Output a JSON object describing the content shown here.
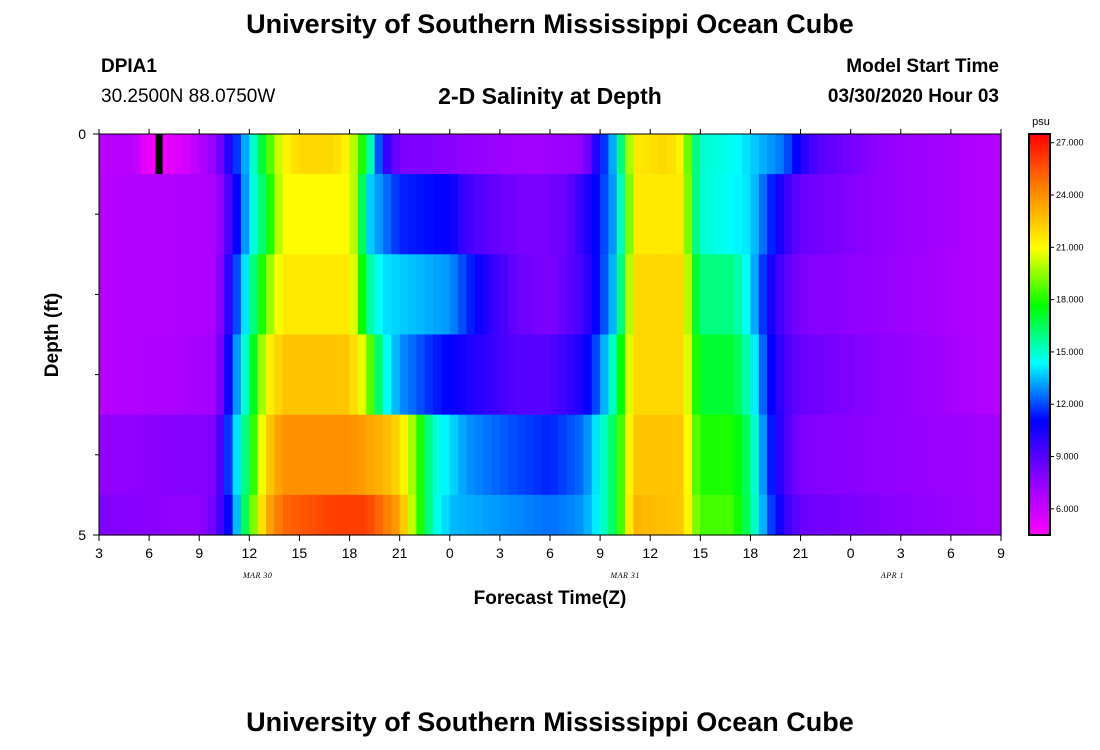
{
  "header": {
    "title": "University of Southern Mississippi Ocean Cube",
    "station_id": "DPIA1",
    "station_location": "30.2500N 88.0750W",
    "chart_title": "2-D Salinity at Depth",
    "model_label": "Model Start Time",
    "model_time": "03/30/2020 Hour 03"
  },
  "footer": {
    "title": "University of Southern Mississippi Ocean Cube"
  },
  "chart_data": {
    "type": "heatmap",
    "title": "2-D Salinity at Depth",
    "xlabel": "Forecast Time(Z)",
    "ylabel": "Depth (ft)",
    "colorbar_unit": "psu",
    "x_tick_labels": [
      "3",
      "6",
      "9",
      "12",
      "15",
      "18",
      "21",
      "0",
      "3",
      "6",
      "9",
      "12",
      "15",
      "18",
      "21",
      "0",
      "3",
      "6",
      "9"
    ],
    "date_labels": [
      {
        "text": "MAR 30",
        "x_hours": 12.5
      },
      {
        "text": "MAR 31",
        "x_hours": 34.5
      },
      {
        "text": "APR 1",
        "x_hours": 50.5
      }
    ],
    "x_range_hours": [
      3,
      57
    ],
    "y_range_ft": [
      0,
      5
    ],
    "y_tick_labels": [
      "0",
      "5"
    ],
    "y_minor_ticks": [
      1,
      2,
      3,
      4
    ],
    "depth_levels_ft": [
      0.25,
      1,
      2,
      3,
      4,
      4.75
    ],
    "depth_band_edges_ft": [
      0,
      0.5,
      1.5,
      2.5,
      3.5,
      4.5,
      5
    ],
    "color_scale": {
      "min": 4.5,
      "max": 27.5,
      "stops": [
        "#ff00ff",
        "#8800ff",
        "#0000ff",
        "#00ffff",
        "#00ff00",
        "#ffff00",
        "#ff8800",
        "#ff0000"
      ],
      "tick_labels": [
        "6.000",
        "9.000",
        "12.000",
        "15.000",
        "18.000",
        "21.000",
        "24.000",
        "27.000"
      ],
      "tick_values": [
        6,
        9,
        12,
        15,
        18,
        21,
        24,
        27
      ]
    },
    "series": [
      {
        "name": "0.25 ft",
        "keyframes": [
          [
            3,
            6.5
          ],
          [
            5,
            6.5
          ],
          [
            6,
            4.8
          ],
          [
            8,
            5.5
          ],
          [
            9,
            6.5
          ],
          [
            10,
            7.5
          ],
          [
            11,
            11
          ],
          [
            12,
            14
          ],
          [
            13,
            18
          ],
          [
            14,
            21
          ],
          [
            15,
            22
          ],
          [
            17,
            22
          ],
          [
            18,
            21
          ],
          [
            19,
            17
          ],
          [
            20,
            10.5
          ],
          [
            21,
            8
          ],
          [
            23,
            8
          ],
          [
            25,
            7.5
          ],
          [
            29,
            7
          ],
          [
            32,
            7.5
          ],
          [
            33,
            11
          ],
          [
            34,
            14
          ],
          [
            34.5,
            18
          ],
          [
            35,
            21.5
          ],
          [
            37,
            22
          ],
          [
            38,
            21
          ],
          [
            38.5,
            17
          ],
          [
            39,
            15
          ],
          [
            41,
            14.5
          ],
          [
            44,
            12.5
          ],
          [
            45,
            10.5
          ],
          [
            46,
            9
          ],
          [
            50,
            7.5
          ],
          [
            57,
            6.5
          ]
        ]
      },
      {
        "name": "1 ft",
        "keyframes": [
          [
            3,
            6.5
          ],
          [
            10,
            6.8
          ],
          [
            11,
            10
          ],
          [
            12,
            14
          ],
          [
            13,
            17
          ],
          [
            14,
            21
          ],
          [
            18,
            21
          ],
          [
            18.5,
            19
          ],
          [
            19,
            14
          ],
          [
            21,
            11.5
          ],
          [
            24,
            11
          ],
          [
            25,
            9.5
          ],
          [
            27,
            8.5
          ],
          [
            29,
            8
          ],
          [
            31,
            8.5
          ],
          [
            32,
            10
          ],
          [
            33,
            11.5
          ],
          [
            34,
            13.5
          ],
          [
            34.5,
            17
          ],
          [
            35,
            21.5
          ],
          [
            38,
            21.5
          ],
          [
            38.5,
            17
          ],
          [
            39,
            15
          ],
          [
            42,
            14
          ],
          [
            43,
            12
          ],
          [
            44,
            10
          ],
          [
            45,
            8.5
          ],
          [
            50,
            7.5
          ],
          [
            57,
            6.5
          ]
        ]
      },
      {
        "name": "2 ft",
        "keyframes": [
          [
            3,
            6.5
          ],
          [
            10,
            6.8
          ],
          [
            11,
            11
          ],
          [
            12,
            15
          ],
          [
            13,
            19
          ],
          [
            14,
            21.5
          ],
          [
            18,
            21.5
          ],
          [
            18.5,
            19.5
          ],
          [
            19,
            16
          ],
          [
            20,
            14
          ],
          [
            24,
            13
          ],
          [
            26,
            10.5
          ],
          [
            28,
            8.5
          ],
          [
            30,
            8
          ],
          [
            32,
            9.5
          ],
          [
            33,
            11.5
          ],
          [
            34,
            14
          ],
          [
            34.5,
            18
          ],
          [
            35,
            22
          ],
          [
            38,
            22
          ],
          [
            38.5,
            18
          ],
          [
            39,
            16
          ],
          [
            41,
            16
          ],
          [
            42,
            14
          ],
          [
            43,
            11
          ],
          [
            44,
            9
          ],
          [
            45,
            8
          ],
          [
            57,
            6.5
          ]
        ]
      },
      {
        "name": "3 ft",
        "keyframes": [
          [
            3,
            6.5
          ],
          [
            10,
            7
          ],
          [
            11,
            12
          ],
          [
            12,
            16
          ],
          [
            13,
            21
          ],
          [
            14,
            22.5
          ],
          [
            18,
            22.5
          ],
          [
            19,
            20
          ],
          [
            20,
            15
          ],
          [
            21,
            13
          ],
          [
            23,
            11.5
          ],
          [
            25,
            10.5
          ],
          [
            28,
            9
          ],
          [
            30,
            9
          ],
          [
            32,
            10.5
          ],
          [
            33,
            12.5
          ],
          [
            34,
            16
          ],
          [
            34.5,
            19
          ],
          [
            35,
            22
          ],
          [
            38,
            22
          ],
          [
            38.5,
            19
          ],
          [
            39,
            17
          ],
          [
            41,
            17
          ],
          [
            42,
            15
          ],
          [
            43,
            11.5
          ],
          [
            44,
            9.5
          ],
          [
            45,
            8.5
          ],
          [
            57,
            6.5
          ]
        ]
      },
      {
        "name": "4 ft",
        "keyframes": [
          [
            3,
            7.5
          ],
          [
            10,
            8
          ],
          [
            11,
            13
          ],
          [
            12,
            17
          ],
          [
            13,
            22
          ],
          [
            14,
            24
          ],
          [
            18,
            24
          ],
          [
            20,
            23
          ],
          [
            21,
            22
          ],
          [
            22,
            19
          ],
          [
            23,
            15
          ],
          [
            25,
            13
          ],
          [
            28,
            12
          ],
          [
            30,
            11.5
          ],
          [
            32,
            12.5
          ],
          [
            33,
            14.5
          ],
          [
            34,
            17
          ],
          [
            34.5,
            20
          ],
          [
            35,
            22.5
          ],
          [
            38,
            22.5
          ],
          [
            38.5,
            19.5
          ],
          [
            39,
            18
          ],
          [
            41,
            18
          ],
          [
            42,
            16
          ],
          [
            43,
            12
          ],
          [
            44,
            9.5
          ],
          [
            45,
            8
          ],
          [
            57,
            7
          ]
        ]
      },
      {
        "name": "4.75 ft",
        "keyframes": [
          [
            3,
            8
          ],
          [
            9,
            7.5
          ],
          [
            10,
            8.5
          ],
          [
            11,
            12
          ],
          [
            12,
            18
          ],
          [
            13,
            23
          ],
          [
            14,
            25
          ],
          [
            17,
            26
          ],
          [
            19,
            26
          ],
          [
            21,
            23.5
          ],
          [
            22,
            19
          ],
          [
            23,
            15
          ],
          [
            24,
            13.5
          ],
          [
            27,
            13
          ],
          [
            30,
            12.5
          ],
          [
            32,
            13
          ],
          [
            33,
            14.5
          ],
          [
            34,
            17
          ],
          [
            34.5,
            20
          ],
          [
            35,
            23
          ],
          [
            38,
            22.5
          ],
          [
            38.5,
            20
          ],
          [
            39,
            18.5
          ],
          [
            41,
            18.5
          ],
          [
            42,
            16
          ],
          [
            43,
            12.5
          ],
          [
            44,
            10
          ],
          [
            45,
            8.5
          ],
          [
            57,
            7
          ]
        ]
      }
    ],
    "marker_color": "#000000",
    "marker_x_hours": 6.6
  }
}
